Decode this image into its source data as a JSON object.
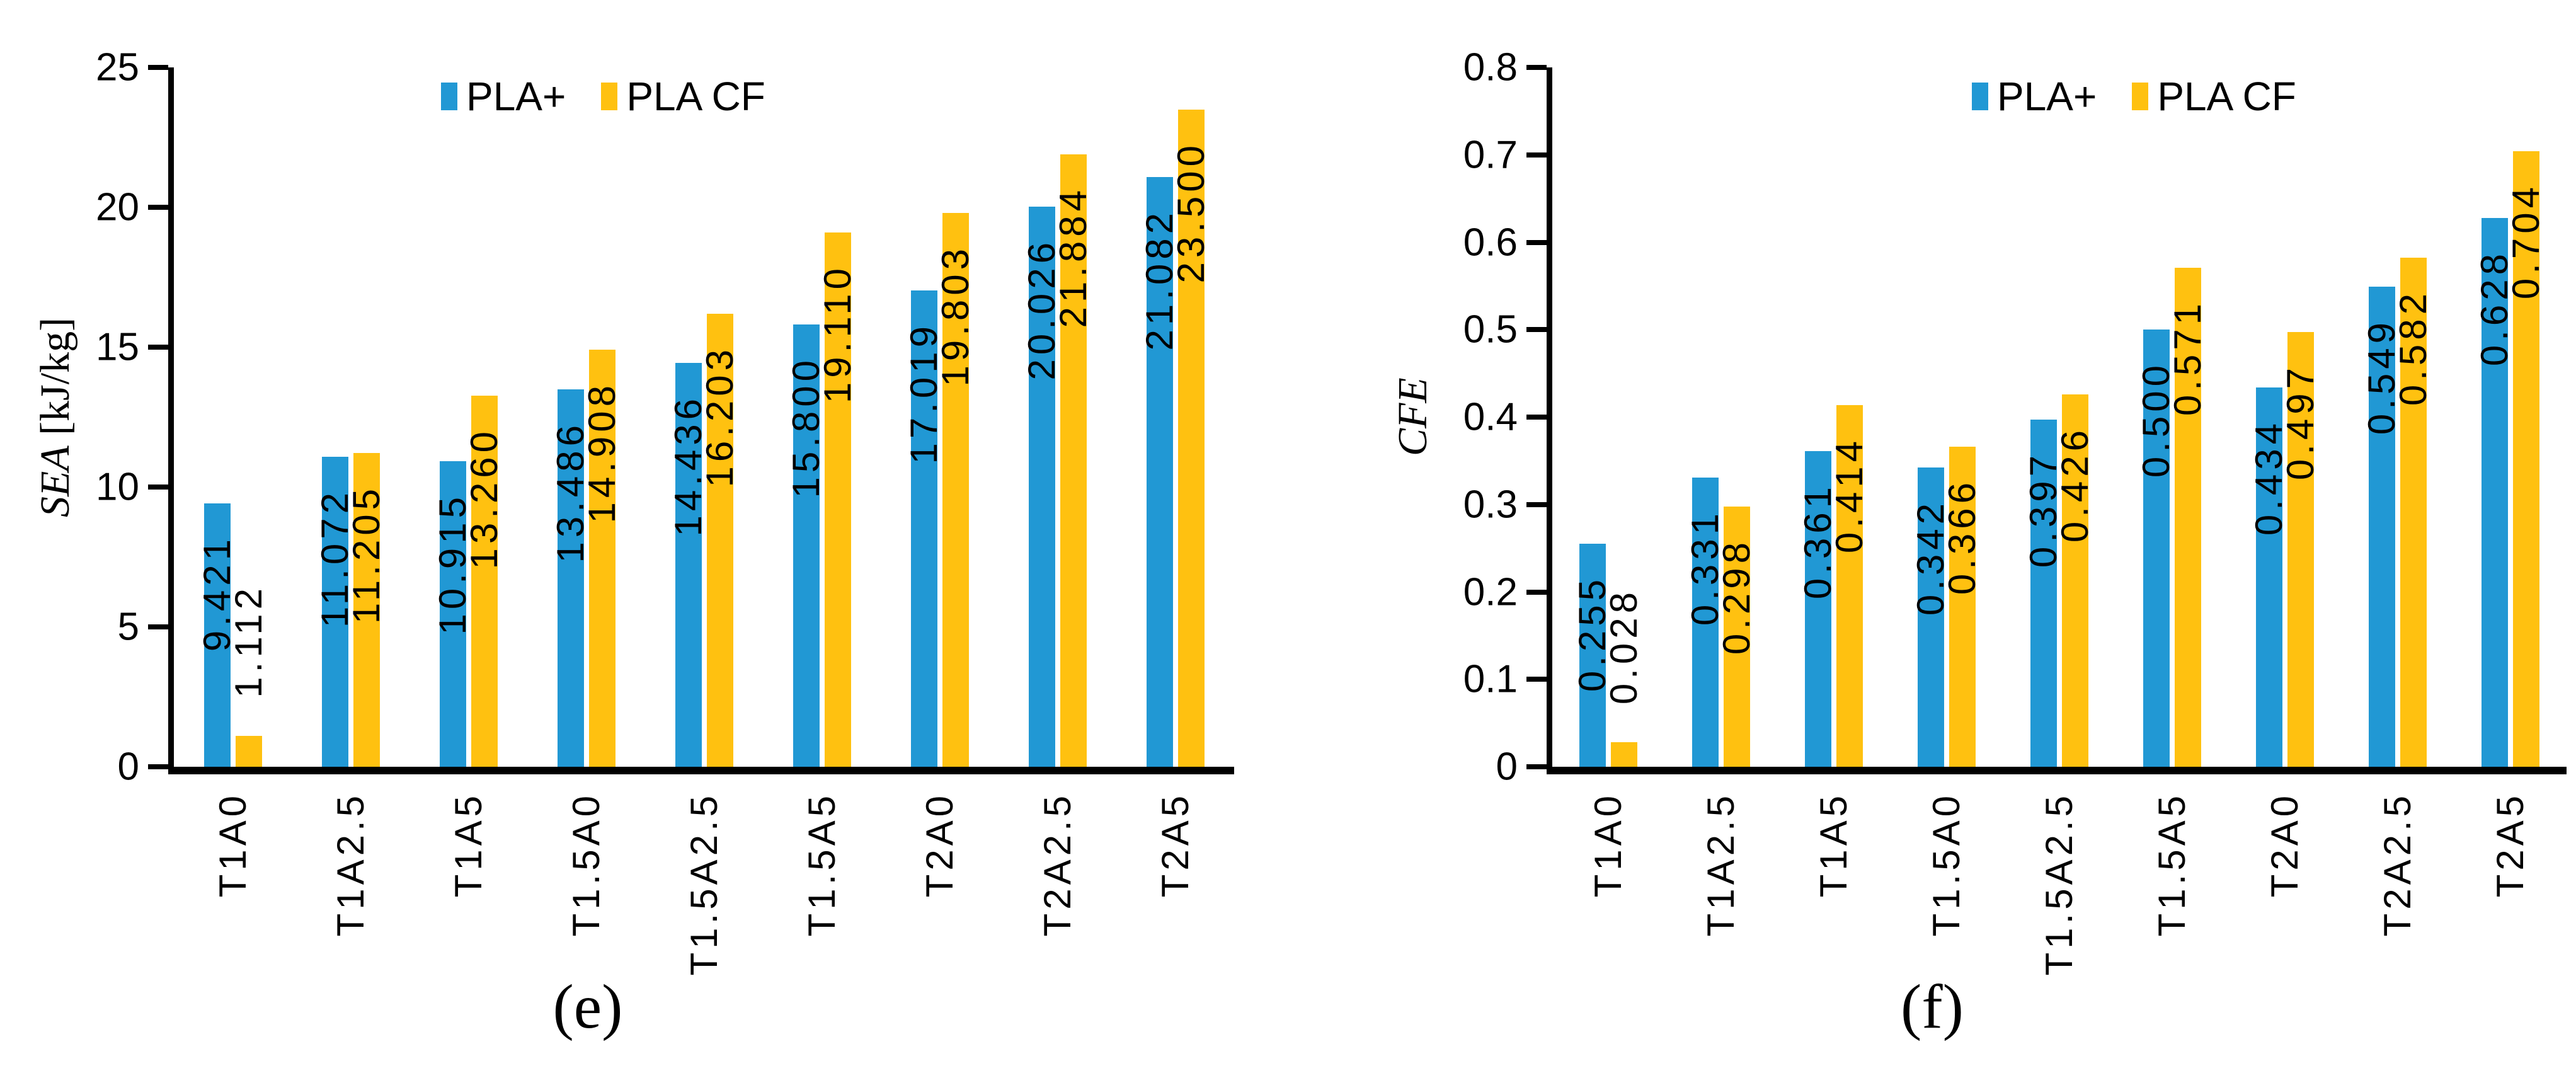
{
  "chart_data": [
    {
      "type": "bar",
      "caption": "(e)",
      "ylabel": "SEA [kJ/kg]",
      "ylabel_var": "SEA",
      "ylabel_rest": " [kJ/kg]",
      "xlabel": "",
      "ylim": [
        0,
        25
      ],
      "ytick_labels": [
        "0",
        "5",
        "10",
        "15",
        "20",
        "25"
      ],
      "grid": false,
      "legend_position": "top",
      "categories": [
        "T1A0",
        "T1A2.5",
        "T1A5",
        "T1.5A0",
        "T1.5A2.5",
        "T1.5A5",
        "T2A0",
        "T2A2.5",
        "T2A5"
      ],
      "series": [
        {
          "name": "PLA+",
          "color": "#2198D4",
          "values": [
            9.421,
            11.072,
            10.915,
            13.486,
            14.436,
            15.8,
            17.019,
            20.026,
            21.082
          ],
          "labels": [
            "9.421",
            "11.072",
            "10.915",
            "13.486",
            "14.436",
            "15.800",
            "17.019",
            "20.026",
            "21.082"
          ]
        },
        {
          "name": "PLA CF",
          "color": "#FFC110",
          "values": [
            1.112,
            11.205,
            13.26,
            14.908,
            16.203,
            19.11,
            19.803,
            21.884,
            23.5
          ],
          "labels": [
            "1.112",
            "11.205",
            "13.260",
            "14.908",
            "16.203",
            "19.110",
            "19.803",
            "21.884",
            "23.500"
          ]
        }
      ]
    },
    {
      "type": "bar",
      "caption": "(f)",
      "ylabel": "CFE",
      "ylabel_var": "CFE",
      "ylabel_rest": "",
      "xlabel": "",
      "ylim": [
        0,
        0.8
      ],
      "ytick_labels": [
        "0",
        "0.1",
        "0.2",
        "0.3",
        "0.4",
        "0.5",
        "0.6",
        "0.7",
        "0.8"
      ],
      "grid": false,
      "legend_position": "top",
      "categories": [
        "T1A0",
        "T1A2.5",
        "T1A5",
        "T1.5A0",
        "T1.5A2.5",
        "T1.5A5",
        "T2A0",
        "T2A2.5",
        "T2A5"
      ],
      "series": [
        {
          "name": "PLA+",
          "color": "#2198D4",
          "values": [
            0.255,
            0.331,
            0.361,
            0.342,
            0.397,
            0.5,
            0.434,
            0.549,
            0.628
          ],
          "labels": [
            "0.255",
            "0.331",
            "0.361",
            "0.342",
            "0.397",
            "0.500",
            "0.434",
            "0.549",
            "0.628"
          ]
        },
        {
          "name": "PLA CF",
          "color": "#FFC110",
          "values": [
            0.028,
            0.298,
            0.414,
            0.366,
            0.426,
            0.571,
            0.497,
            0.582,
            0.704
          ],
          "labels": [
            "0.028",
            "0.298",
            "0.414",
            "0.366",
            "0.426",
            "0.571",
            "0.497",
            "0.582",
            "0.704"
          ]
        }
      ]
    }
  ]
}
